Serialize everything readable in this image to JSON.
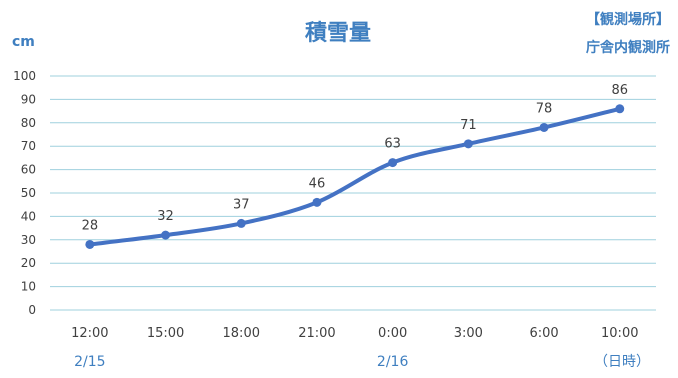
{
  "chart_data": {
    "type": "line",
    "title": "積雪量",
    "ylabel": "cm",
    "xlabel": "（日時）",
    "station_label": "【観測場所】",
    "station_name": "庁舎内観測所",
    "categories": [
      "12:00",
      "15:00",
      "18:00",
      "21:00",
      "0:00",
      "3:00",
      "6:00",
      "10:00"
    ],
    "date_labels": [
      {
        "index": 0,
        "text": "2/15"
      },
      {
        "index": 4,
        "text": "2/16"
      }
    ],
    "series": [
      {
        "values": [
          28,
          32,
          37,
          46,
          63,
          71,
          78,
          86
        ],
        "color": "#4472c4"
      }
    ],
    "ylim": [
      0,
      100
    ],
    "yticks": [
      0,
      10,
      20,
      30,
      40,
      50,
      60,
      70,
      80,
      90,
      100
    ],
    "grid": true,
    "grid_color": "#9fd0de",
    "accent_color": "#3f7fc0"
  }
}
